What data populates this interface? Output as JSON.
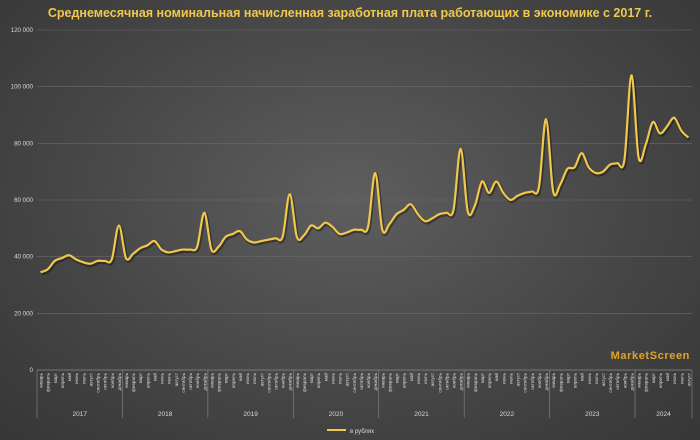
{
  "chart_data": {
    "type": "line",
    "title": "Среднемесячная номинальная начисленная заработная плата работающих в экономике с 2017 г.",
    "watermark": "MarketScreen",
    "series": [
      {
        "name": "в рублях",
        "color": "#f2c84b",
        "values": [
          34500,
          35500,
          38500,
          39500,
          40500,
          39000,
          38000,
          37500,
          38500,
          38500,
          39000,
          51000,
          39500,
          41000,
          43000,
          44000,
          45500,
          42500,
          41500,
          42000,
          42500,
          42500,
          43500,
          55500,
          42500,
          43500,
          47000,
          48000,
          49000,
          46000,
          45000,
          45500,
          46000,
          46500,
          47000,
          62000,
          47000,
          47500,
          51000,
          50000,
          52000,
          50500,
          48000,
          48500,
          49500,
          49500,
          50500,
          69500,
          49500,
          51500,
          55000,
          56500,
          58500,
          55000,
          52500,
          53500,
          55000,
          55500,
          56500,
          78000,
          56000,
          58000,
          66500,
          62500,
          66500,
          62500,
          60000,
          61500,
          62500,
          63000,
          64500,
          88500,
          63000,
          65500,
          71000,
          71500,
          76500,
          71500,
          69500,
          70000,
          72500,
          73000,
          74000,
          104000,
          75000,
          79500,
          87500,
          83500,
          86000,
          89000,
          84500,
          82000
        ]
      }
    ],
    "x_tick_labels": [
      "январь",
      "февраль",
      "март",
      "апрель",
      "май",
      "июнь",
      "июль",
      "август",
      "сентябрь",
      "октябрь",
      "ноябрь",
      "декабрь",
      "январь",
      "февраль",
      "март",
      "апрель",
      "май",
      "июнь",
      "июль",
      "август",
      "сентябрь",
      "октябрь",
      "ноябрь",
      "декабрь",
      "январь",
      "февраль",
      "март",
      "апрель",
      "май",
      "июнь",
      "июль",
      "август",
      "сентябрь",
      "октябрь",
      "ноябрь",
      "декабрь",
      "январь",
      "февраль",
      "март",
      "апрель",
      "май",
      "июнь",
      "июль",
      "август",
      "сентябрь",
      "октябрь",
      "ноябрь",
      "декабрь",
      "январь",
      "февраль",
      "март",
      "апрель",
      "май",
      "июнь",
      "июль",
      "август",
      "сентябрь",
      "октябрь",
      "ноябрь",
      "декабрь",
      "январь",
      "февраль",
      "март",
      "апрель",
      "май",
      "июнь",
      "июль",
      "август",
      "сентябрь",
      "октябрь",
      "ноябрь",
      "декабрь",
      "январь",
      "февраль",
      "март",
      "апрель",
      "май",
      "июнь",
      "июль",
      "август",
      "сентябрь",
      "октябрь",
      "ноябрь",
      "декабрь",
      "январь",
      "февраль",
      "март",
      "апрель",
      "май",
      "июнь",
      "июль",
      "август"
    ],
    "years": [
      {
        "label": "2017",
        "months": 12
      },
      {
        "label": "2018",
        "months": 12
      },
      {
        "label": "2019",
        "months": 12
      },
      {
        "label": "2020",
        "months": 12
      },
      {
        "label": "2021",
        "months": 12
      },
      {
        "label": "2022",
        "months": 12
      },
      {
        "label": "2023",
        "months": 12
      },
      {
        "label": "2024",
        "months": 8
      }
    ],
    "y_ticks": [
      0,
      20000,
      40000,
      60000,
      80000,
      100000,
      120000
    ],
    "y_tick_labels": [
      "0",
      "20 000",
      "40 000",
      "60 000",
      "80 000",
      "100 000",
      "120 000"
    ],
    "ylim": [
      0,
      120000
    ],
    "grid": true,
    "legend_position": "bottom",
    "colors": {
      "line": "#f2c84b",
      "title": "#f2c84b",
      "watermark": "#e0a42a",
      "text": "#d9d9d9",
      "grid": "#6a6a6a"
    }
  }
}
